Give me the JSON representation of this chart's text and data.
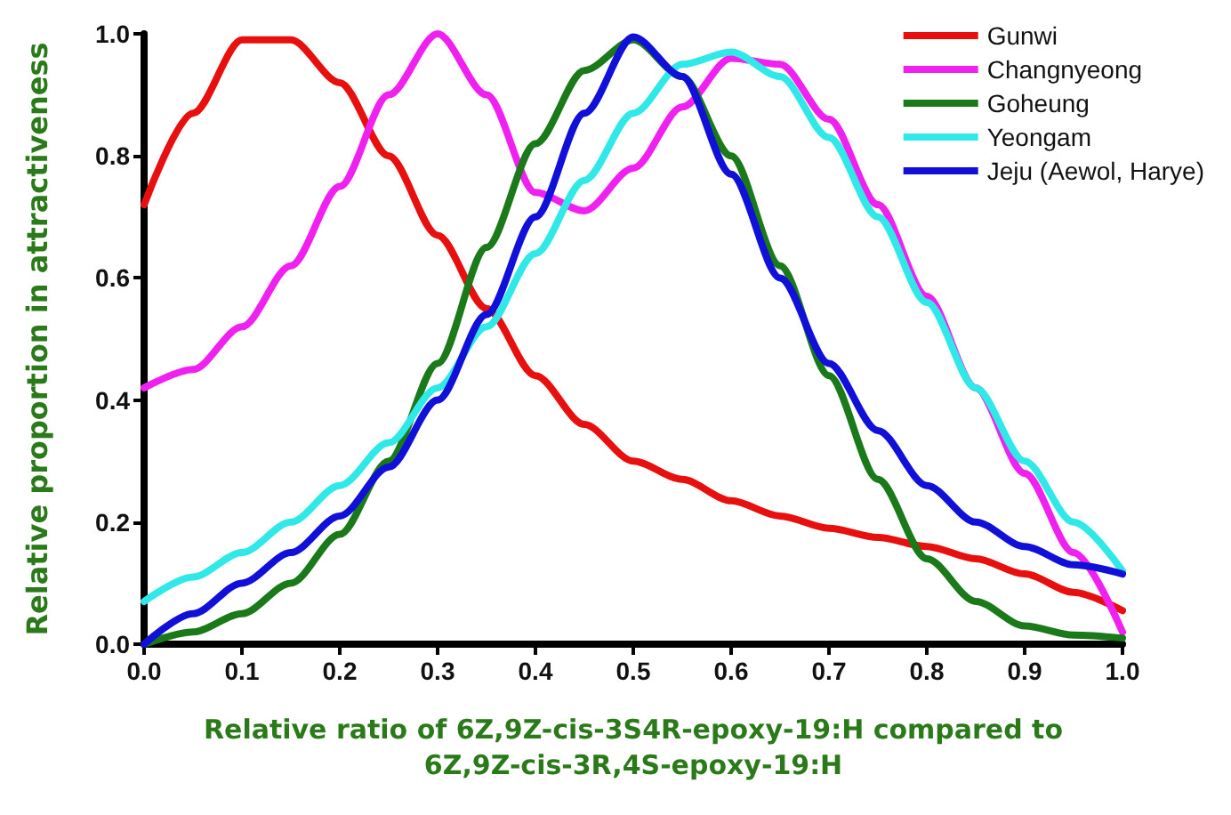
{
  "chart_data": {
    "type": "line",
    "xlabel": "Relative ratio of 6Z,9Z-cis-3S4R-epoxy-19:H compared to 6Z,9Z-cis-3R,4S-epoxy-19:H",
    "ylabel": "Relative proportion in attractiveness",
    "x": [
      0,
      0.05,
      0.1,
      0.15,
      0.2,
      0.25,
      0.3,
      0.35,
      0.4,
      0.45,
      0.5,
      0.55,
      0.6,
      0.65,
      0.7,
      0.75,
      0.8,
      0.85,
      0.9,
      0.95,
      1.0
    ],
    "series": [
      {
        "name": "Gunwi",
        "color": "#e8100f",
        "values": [
          0.72,
          0.87,
          0.99,
          0.99,
          0.92,
          0.8,
          0.67,
          0.55,
          0.44,
          0.36,
          0.3,
          0.27,
          0.235,
          0.21,
          0.19,
          0.175,
          0.16,
          0.14,
          0.115,
          0.085,
          0.055
        ]
      },
      {
        "name": "Changnyeong",
        "color": "#f020f0",
        "values": [
          0.42,
          0.45,
          0.52,
          0.62,
          0.75,
          0.9,
          1.0,
          0.9,
          0.74,
          0.71,
          0.78,
          0.88,
          0.96,
          0.95,
          0.86,
          0.72,
          0.57,
          0.42,
          0.28,
          0.15,
          0.02
        ]
      },
      {
        "name": "Goheung",
        "color": "#1a7a1a",
        "values": [
          0,
          0.02,
          0.05,
          0.1,
          0.18,
          0.3,
          0.46,
          0.65,
          0.82,
          0.94,
          0.99,
          0.93,
          0.8,
          0.62,
          0.44,
          0.27,
          0.14,
          0.07,
          0.03,
          0.015,
          0.01
        ]
      },
      {
        "name": "Yeongam",
        "color": "#30e8e8",
        "values": [
          0.07,
          0.11,
          0.15,
          0.2,
          0.26,
          0.33,
          0.42,
          0.52,
          0.64,
          0.76,
          0.87,
          0.95,
          0.97,
          0.93,
          0.83,
          0.7,
          0.56,
          0.42,
          0.3,
          0.2,
          0.12
        ]
      },
      {
        "name": "Jeju (Aewol, Harye)",
        "color": "#1010d8",
        "values": [
          0,
          0.05,
          0.1,
          0.15,
          0.21,
          0.29,
          0.4,
          0.54,
          0.7,
          0.87,
          0.995,
          0.93,
          0.77,
          0.6,
          0.46,
          0.35,
          0.26,
          0.2,
          0.16,
          0.13,
          0.115
        ]
      }
    ],
    "xlim": [
      0,
      1.0
    ],
    "xticks": [
      {
        "value": 0,
        "label": "0.0"
      },
      0.1,
      0.2,
      0.3,
      0.4,
      0.5,
      0.6,
      0.7,
      0.8,
      0.9,
      {
        "value": 1.0,
        "label": "1.0"
      }
    ],
    "ylim": [
      0,
      1.0
    ],
    "yticks": [
      {
        "value": 0,
        "label": "0.0"
      },
      0.2,
      0.4,
      0.6,
      0.8,
      {
        "value": 1.0,
        "label": "1.0"
      }
    ],
    "grid": false,
    "legend": "top right",
    "marker": "none",
    "line_style": "solid"
  }
}
